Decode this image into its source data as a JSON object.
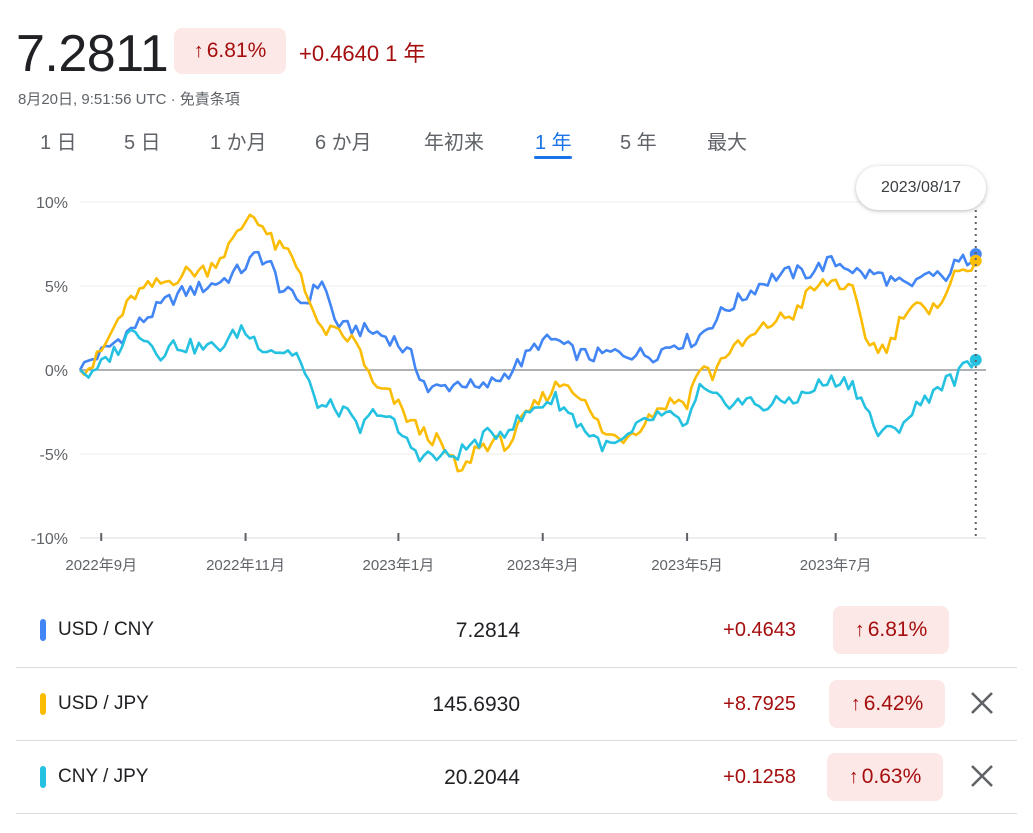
{
  "header": {
    "price": "7.2811",
    "percent_change": "6.81%",
    "absolute_change": "+0.4640",
    "period": "1 年",
    "timestamp": "8月20日, 9:51:56 UTC",
    "separator": "·",
    "disclaimer": "免責条項"
  },
  "tabs": [
    {
      "label": "1 日",
      "active": false
    },
    {
      "label": "5 日",
      "active": false
    },
    {
      "label": "1 か月",
      "active": false
    },
    {
      "label": "6 か月",
      "active": false
    },
    {
      "label": "年初来",
      "active": false
    },
    {
      "label": "1 年",
      "active": true
    },
    {
      "label": "5 年",
      "active": false
    },
    {
      "label": "最大",
      "active": false
    }
  ],
  "tooltip": {
    "date": "2023/08/17"
  },
  "chart_data": {
    "type": "line",
    "ylim": [
      -10,
      10
    ],
    "yticks": [
      10,
      5,
      0,
      -5,
      -10
    ],
    "ytick_labels": [
      "10%",
      "5%",
      "0%",
      "-5%",
      "-10%"
    ],
    "x_tick_labels": [
      "2022年9月",
      "2022年11月",
      "2023年1月",
      "2023年3月",
      "2023年5月",
      "2023年7月"
    ],
    "x_tick_index": [
      5,
      39,
      75,
      109,
      143,
      178
    ],
    "n_points": 213,
    "grid": true,
    "zero_line": true,
    "series": [
      {
        "name": "USD / CNY",
        "color": "#4285f4",
        "anchors": [
          [
            0,
            0
          ],
          [
            2,
            0.5
          ],
          [
            6,
            1.2
          ],
          [
            10,
            2
          ],
          [
            15,
            3
          ],
          [
            20,
            4
          ],
          [
            24,
            4.6
          ],
          [
            30,
            5
          ],
          [
            34,
            5.4
          ],
          [
            38,
            6
          ],
          [
            42,
            6.9
          ],
          [
            45,
            6.2
          ],
          [
            47,
            5
          ],
          [
            49,
            4.5
          ],
          [
            53,
            4
          ],
          [
            57,
            5.4
          ],
          [
            60,
            3
          ],
          [
            62,
            2.5
          ],
          [
            64,
            2.5
          ],
          [
            70,
            2.2
          ],
          [
            74,
            1.8
          ],
          [
            78,
            0.8
          ],
          [
            82,
            -1.2
          ],
          [
            86,
            -1
          ],
          [
            90,
            -0.7
          ],
          [
            94,
            -1.2
          ],
          [
            100,
            -0.3
          ],
          [
            104,
            0.5
          ],
          [
            108,
            1.6
          ],
          [
            112,
            1.8
          ],
          [
            116,
            1.1
          ],
          [
            120,
            0.8
          ],
          [
            125,
            1
          ],
          [
            130,
            1
          ],
          [
            135,
            0.9
          ],
          [
            140,
            1.6
          ],
          [
            145,
            1.8
          ],
          [
            148,
            2.6
          ],
          [
            152,
            3.6
          ],
          [
            156,
            4.3
          ],
          [
            160,
            5.1
          ],
          [
            164,
            5.6
          ],
          [
            168,
            5.8
          ],
          [
            172,
            5.8
          ],
          [
            176,
            6.4
          ],
          [
            180,
            6.3
          ],
          [
            184,
            5.7
          ],
          [
            188,
            5.7
          ],
          [
            192,
            5.2
          ],
          [
            196,
            4.8
          ],
          [
            199,
            5.8
          ],
          [
            203,
            5.4
          ],
          [
            206,
            6.2
          ],
          [
            211,
            6.9
          ]
        ]
      },
      {
        "name": "USD / JPY",
        "color": "#fbbc04",
        "anchors": [
          [
            0,
            0
          ],
          [
            3,
            0.3
          ],
          [
            6,
            1.5
          ],
          [
            9,
            3
          ],
          [
            13,
            4.5
          ],
          [
            17,
            5
          ],
          [
            21,
            5.3
          ],
          [
            25,
            5.8
          ],
          [
            30,
            6
          ],
          [
            34,
            7
          ],
          [
            37,
            8
          ],
          [
            40,
            9.3
          ],
          [
            42,
            9
          ],
          [
            44,
            8.1
          ],
          [
            46,
            7.4
          ],
          [
            49,
            7
          ],
          [
            52,
            5.8
          ],
          [
            54,
            4.2
          ],
          [
            56,
            2.5
          ],
          [
            60,
            2.2
          ],
          [
            64,
            1.8
          ],
          [
            66,
            1.2
          ],
          [
            69,
            -1
          ],
          [
            73,
            -1.5
          ],
          [
            77,
            -2.8
          ],
          [
            80,
            -3.6
          ],
          [
            84,
            -4.2
          ],
          [
            87,
            -5.2
          ],
          [
            90,
            -6.2
          ],
          [
            93,
            -4.7
          ],
          [
            97,
            -4.3
          ],
          [
            101,
            -4.4
          ],
          [
            105,
            -2.8
          ],
          [
            108,
            -1.9
          ],
          [
            112,
            -1
          ],
          [
            114,
            -0.7
          ],
          [
            117,
            -1.2
          ],
          [
            120,
            -2.5
          ],
          [
            124,
            -3.9
          ],
          [
            128,
            -4
          ],
          [
            132,
            -3.3
          ],
          [
            136,
            -2.3
          ],
          [
            140,
            -1.8
          ],
          [
            143,
            -1.9
          ],
          [
            146,
            0.2
          ],
          [
            149,
            -0.3
          ],
          [
            152,
            1
          ],
          [
            156,
            1.5
          ],
          [
            160,
            2.3
          ],
          [
            164,
            3
          ],
          [
            168,
            3.3
          ],
          [
            172,
            4.7
          ],
          [
            175,
            5.1
          ],
          [
            178,
            5.3
          ],
          [
            182,
            4.6
          ],
          [
            185,
            2
          ],
          [
            188,
            1.2
          ],
          [
            191,
            1.6
          ],
          [
            194,
            3.5
          ],
          [
            197,
            4
          ],
          [
            200,
            3.1
          ],
          [
            203,
            4.4
          ],
          [
            206,
            5.6
          ],
          [
            209,
            6.1
          ],
          [
            211,
            6.5
          ]
        ]
      },
      {
        "name": "CNY / JPY",
        "color": "#24c1e0",
        "anchors": [
          [
            0,
            0
          ],
          [
            3,
            -0.4
          ],
          [
            6,
            0.6
          ],
          [
            9,
            1.3
          ],
          [
            13,
            2.6
          ],
          [
            16,
            1.7
          ],
          [
            19,
            1
          ],
          [
            22,
            1.5
          ],
          [
            26,
            1.4
          ],
          [
            30,
            1.3
          ],
          [
            34,
            1.5
          ],
          [
            38,
            2.5
          ],
          [
            40,
            2
          ],
          [
            44,
            1.3
          ],
          [
            48,
            1.1
          ],
          [
            51,
            1
          ],
          [
            53,
            -0.3
          ],
          [
            55,
            -1.6
          ],
          [
            57,
            -2.2
          ],
          [
            60,
            -2.2
          ],
          [
            63,
            -2.7
          ],
          [
            66,
            -3.6
          ],
          [
            70,
            -2.3
          ],
          [
            74,
            -3.3
          ],
          [
            77,
            -4.3
          ],
          [
            80,
            -5
          ],
          [
            84,
            -5.2
          ],
          [
            88,
            -5.1
          ],
          [
            92,
            -4.5
          ],
          [
            96,
            -3.9
          ],
          [
            100,
            -3.6
          ],
          [
            104,
            -2.9
          ],
          [
            108,
            -2.1
          ],
          [
            112,
            -1.7
          ],
          [
            116,
            -2.8
          ],
          [
            120,
            -3.8
          ],
          [
            124,
            -4.6
          ],
          [
            128,
            -4.3
          ],
          [
            132,
            -3.3
          ],
          [
            136,
            -2.7
          ],
          [
            140,
            -2.9
          ],
          [
            143,
            -3.3
          ],
          [
            146,
            -1.2
          ],
          [
            150,
            -1.8
          ],
          [
            154,
            -1.9
          ],
          [
            158,
            -1.9
          ],
          [
            162,
            -2.2
          ],
          [
            166,
            -1.8
          ],
          [
            170,
            -1.6
          ],
          [
            174,
            -0.9
          ],
          [
            178,
            -0.6
          ],
          [
            182,
            -0.8
          ],
          [
            185,
            -2.2
          ],
          [
            188,
            -3.8
          ],
          [
            192,
            -3.6
          ],
          [
            196,
            -2.5
          ],
          [
            200,
            -1.5
          ],
          [
            203,
            -0.8
          ],
          [
            206,
            -0.5
          ],
          [
            209,
            0.3
          ],
          [
            211,
            0.6
          ]
        ]
      }
    ]
  },
  "table": {
    "rows": [
      {
        "name": "USD / CNY",
        "color": "#4285f4",
        "value": "7.2814",
        "change": "+0.4643",
        "percent": "6.81%",
        "closable": false
      },
      {
        "name": "USD / JPY",
        "color": "#fbbc04",
        "value": "145.6930",
        "change": "+8.7925",
        "percent": "6.42%",
        "closable": true
      },
      {
        "name": "CNY / JPY",
        "color": "#24c1e0",
        "value": "20.2044",
        "change": "+0.1258",
        "percent": "0.63%",
        "closable": true
      }
    ]
  }
}
